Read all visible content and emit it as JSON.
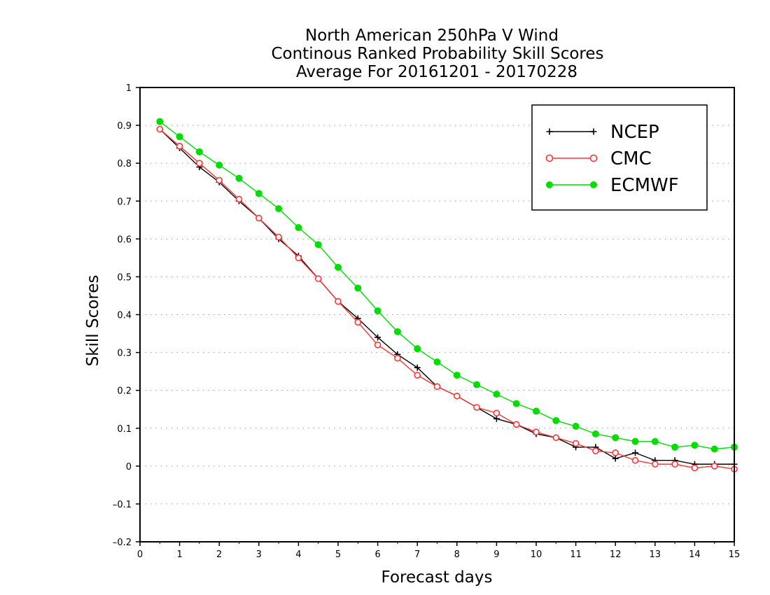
{
  "chart_data": {
    "type": "line",
    "title_lines": [
      "North American 250hPa V Wind",
      "Continous Ranked Probability Skill Scores",
      "Average For 20161201 - 20170228"
    ],
    "xlabel": "Forecast days",
    "ylabel": "Skill Scores",
    "xlim": [
      0,
      15
    ],
    "ylim": [
      -0.2,
      1
    ],
    "x_ticks": [
      0,
      1,
      2,
      3,
      4,
      5,
      6,
      7,
      8,
      9,
      10,
      11,
      12,
      13,
      14,
      15
    ],
    "x_tick_labels": [
      "0",
      "1",
      "2",
      "3",
      "4",
      "5",
      "6",
      "7",
      "8",
      "9",
      "10",
      "11",
      "12",
      "13",
      "14",
      "15"
    ],
    "y_ticks": [
      -0.2,
      -0.1,
      0,
      0.1,
      0.2,
      0.3,
      0.4,
      0.5,
      0.6,
      0.7,
      0.8,
      0.9,
      1
    ],
    "y_tick_labels": [
      "–0.2",
      "–0.1",
      "0",
      "0.1",
      "0.2",
      "0.3",
      "0.4",
      "0.5",
      "0.6",
      "0.7",
      "0.8",
      "0.9",
      "1"
    ],
    "grid": "horizontal dotted",
    "legend_position": "top-right",
    "x": [
      0.5,
      1,
      1.5,
      2,
      2.5,
      3,
      3.5,
      4,
      4.5,
      5,
      5.5,
      6,
      6.5,
      7,
      7.5,
      8,
      8.5,
      9,
      9.5,
      10,
      10.5,
      11,
      11.5,
      12,
      12.5,
      13,
      13.5,
      14,
      14.5,
      15
    ],
    "series": [
      {
        "name": "NCEP",
        "color": "#000000",
        "marker": "plus",
        "values": [
          0.89,
          0.84,
          0.79,
          0.75,
          0.7,
          0.655,
          0.6,
          0.555,
          0.495,
          0.435,
          0.39,
          0.34,
          0.295,
          0.26,
          0.21,
          0.185,
          0.155,
          0.125,
          0.11,
          0.085,
          0.075,
          0.05,
          0.05,
          0.02,
          0.035,
          0.015,
          0.015,
          0.005,
          0.005,
          0.005
        ]
      },
      {
        "name": "CMC",
        "color": "#ff3333",
        "marker": "circle-open",
        "values": [
          0.89,
          0.845,
          0.8,
          0.755,
          0.705,
          0.655,
          0.605,
          0.55,
          0.495,
          0.435,
          0.38,
          0.32,
          0.285,
          0.24,
          0.21,
          0.185,
          0.155,
          0.14,
          0.11,
          0.09,
          0.075,
          0.06,
          0.04,
          0.035,
          0.015,
          0.005,
          0.005,
          -0.005,
          0.0,
          -0.008
        ]
      },
      {
        "name": "ECMWF",
        "color": "#00dd00",
        "marker": "circle-filled",
        "values": [
          0.91,
          0.87,
          0.83,
          0.795,
          0.76,
          0.72,
          0.68,
          0.63,
          0.585,
          0.525,
          0.47,
          0.41,
          0.355,
          0.31,
          0.275,
          0.24,
          0.215,
          0.19,
          0.165,
          0.145,
          0.12,
          0.105,
          0.085,
          0.075,
          0.065,
          0.065,
          0.05,
          0.055,
          0.045,
          0.05
        ]
      }
    ]
  }
}
